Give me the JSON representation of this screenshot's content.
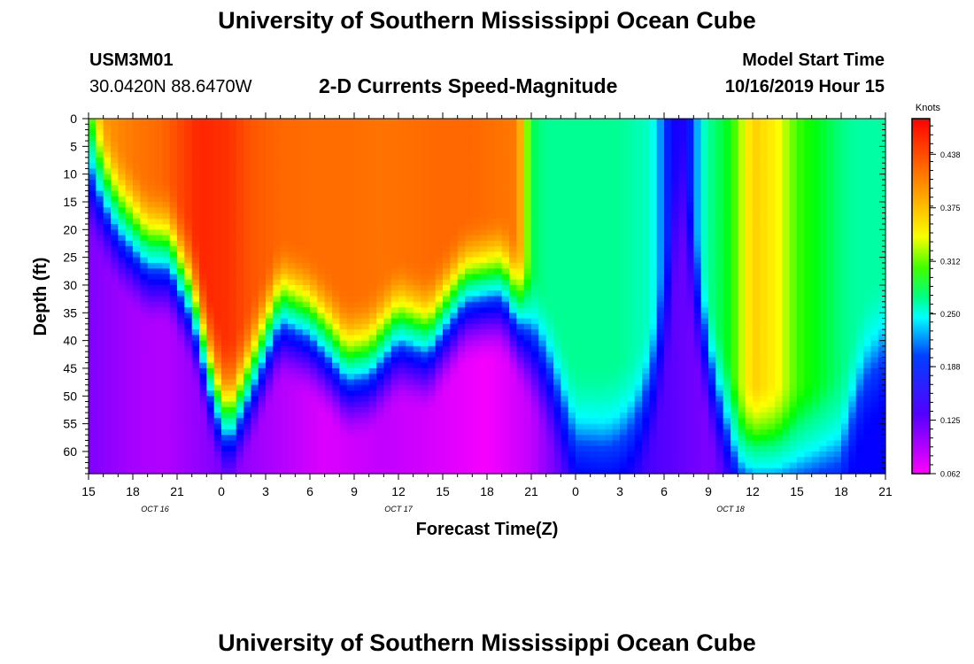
{
  "page": {
    "title_top": "University of Southern Mississippi Ocean Cube",
    "title_bottom": "University of Southern Mississippi Ocean Cube",
    "station_id": "USM3M01",
    "coordinates": "30.0420N 88.6470W",
    "chart_title": "2-D Currents Speed-Magnitude",
    "model_label": "Model Start Time",
    "model_time": "10/16/2019 Hour 15"
  },
  "chart_data": {
    "type": "heatmap",
    "title": "2-D Currents Speed-Magnitude",
    "xlabel": "Forecast Time(Z)",
    "ylabel": "Depth (ft)",
    "x_unit": "forecast hours since 10/16/2019 15Z",
    "xlim": [
      0,
      54
    ],
    "ylim": [
      0,
      64
    ],
    "x_ticks": [
      0,
      3,
      6,
      9,
      12,
      15,
      18,
      21,
      24,
      27,
      30,
      33,
      36,
      39,
      42,
      45,
      48,
      51,
      54
    ],
    "x_tick_labels": [
      "15",
      "18",
      "21",
      "0",
      "3",
      "6",
      "9",
      "12",
      "15",
      "18",
      "21",
      "0",
      "3",
      "6",
      "9",
      "12",
      "15",
      "18",
      "21"
    ],
    "y_ticks": [
      0,
      5,
      10,
      15,
      20,
      25,
      30,
      35,
      40,
      45,
      50,
      55,
      60
    ],
    "y_tick_labels": [
      "0",
      "5",
      "10",
      "15",
      "20",
      "25",
      "30",
      "35",
      "40",
      "45",
      "50",
      "55",
      "60"
    ],
    "date_labels": [
      {
        "text": "OCT 16",
        "hour": 4.5
      },
      {
        "text": "OCT 17",
        "hour": 21
      },
      {
        "text": "OCT 18",
        "hour": 43.5
      }
    ],
    "colorbar": {
      "unit_label": "Knots",
      "min": 0.062,
      "max": 0.48,
      "ticks": [
        0.062,
        0.125,
        0.188,
        0.25,
        0.312,
        0.375,
        0.438
      ],
      "tick_labels": [
        "0.062",
        "0.125",
        "0.188",
        "0.250",
        "0.312",
        "0.375",
        "0.438"
      ]
    },
    "surface_speed": {
      "hours": [
        0,
        1,
        3,
        5,
        7.5,
        9.5,
        11,
        13,
        16,
        18,
        20,
        22,
        24,
        26,
        29,
        30,
        31,
        33,
        36,
        38,
        39,
        39.5,
        40,
        40.5,
        41,
        42,
        43.5,
        45,
        46.5,
        48,
        50,
        52,
        54
      ],
      "values": [
        0.28,
        0.36,
        0.38,
        0.395,
        0.45,
        0.44,
        0.41,
        0.395,
        0.39,
        0.39,
        0.385,
        0.39,
        0.395,
        0.395,
        0.38,
        0.26,
        0.245,
        0.245,
        0.245,
        0.23,
        0.19,
        0.16,
        0.145,
        0.155,
        0.19,
        0.245,
        0.27,
        0.335,
        0.32,
        0.28,
        0.26,
        0.24,
        0.24
      ]
    },
    "transition_depth_ft": {
      "hours": [
        0,
        2,
        4,
        5.5,
        7,
        8.5,
        9.5,
        11,
        13,
        15,
        17.5,
        19,
        21,
        23,
        25.5,
        28,
        29.5,
        31,
        33,
        35,
        37,
        38,
        38.5,
        39.5,
        40,
        41,
        42,
        43,
        44,
        45,
        48,
        51,
        52.5,
        54
      ],
      "values": [
        8,
        18,
        24,
        24,
        32,
        48,
        54,
        46,
        34,
        37,
        45,
        44,
        38,
        40,
        31,
        30,
        37,
        45,
        58,
        58,
        55,
        49,
        45,
        30,
        8,
        30,
        44,
        54,
        61,
        61,
        61,
        59,
        45,
        40
      ]
    },
    "bottom_speed": {
      "hours": [
        0,
        3,
        5,
        7,
        9,
        12,
        16,
        20,
        24,
        27,
        30,
        33,
        36,
        38,
        40,
        42,
        44,
        48,
        52,
        54
      ],
      "values": [
        0.11,
        0.095,
        0.09,
        0.1,
        0.11,
        0.095,
        0.075,
        0.085,
        0.075,
        0.065,
        0.085,
        0.14,
        0.15,
        0.13,
        0.12,
        0.11,
        0.13,
        0.15,
        0.16,
        0.16
      ]
    }
  }
}
